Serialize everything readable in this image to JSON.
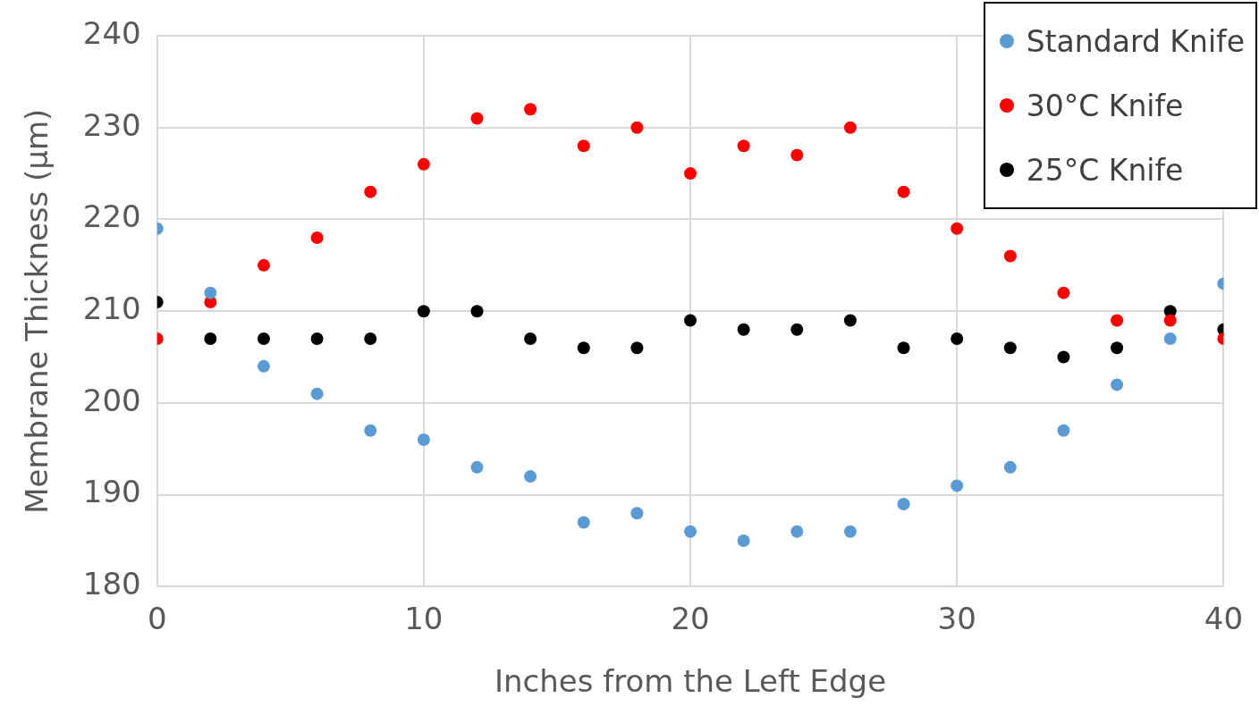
{
  "chart_data": {
    "type": "scatter",
    "xlabel": "Inches from the Left Edge",
    "ylabel": "Membrane Thickness (µm)",
    "x": [
      0,
      2,
      4,
      6,
      8,
      10,
      12,
      14,
      16,
      18,
      20,
      22,
      24,
      26,
      28,
      30,
      32,
      34,
      36,
      38,
      40
    ],
    "xlim": [
      0,
      40
    ],
    "xticks": [
      0,
      10,
      20,
      30,
      40
    ],
    "ylim": [
      180,
      240
    ],
    "yticks": [
      180,
      190,
      200,
      210,
      220,
      230,
      240
    ],
    "grid": true,
    "legend": "top right",
    "marker": "circle",
    "series": [
      {
        "name": "Standard Knife",
        "color": "#5b9bd5",
        "values": [
          219,
          212,
          204,
          201,
          197,
          196,
          193,
          192,
          187,
          188,
          186,
          185,
          186,
          186,
          189,
          191,
          193,
          197,
          202,
          207,
          213
        ]
      },
      {
        "name": "30°C Knife",
        "color": "#ff0000",
        "values": [
          207,
          211,
          215,
          218,
          223,
          226,
          231,
          232,
          228,
          230,
          225,
          228,
          227,
          230,
          223,
          219,
          216,
          212,
          209,
          209,
          207
        ]
      },
      {
        "name": "25°C Knife",
        "color": "#000000",
        "values": [
          211,
          207,
          207,
          207,
          207,
          210,
          210,
          207,
          206,
          206,
          209,
          208,
          208,
          209,
          206,
          207,
          206,
          205,
          206,
          210,
          208
        ]
      }
    ]
  }
}
